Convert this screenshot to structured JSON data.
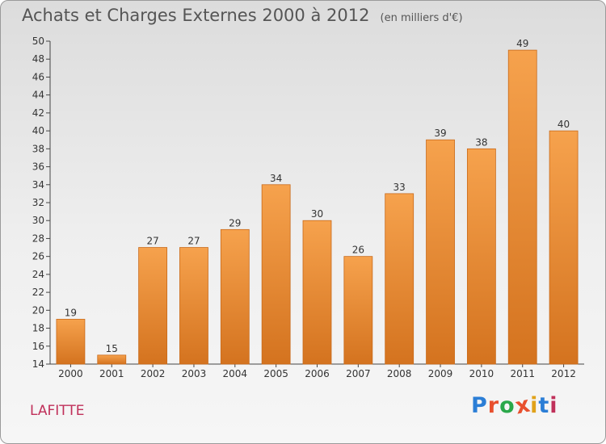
{
  "header": {
    "title": "Achats et Charges Externes 2000 à 2012",
    "unit": "(en milliers d'€)"
  },
  "footer": {
    "commune": "LAFITTE",
    "brand": "Proxiti",
    "brand_colors": [
      "#2b7ed6",
      "#e8502e",
      "#2aa84a",
      "#e8502e",
      "#e0a21a",
      "#2b7ed6",
      "#c0305a"
    ]
  },
  "colors": {
    "bar_top": "#f6a24d",
    "bar_bottom": "#d4731f",
    "bar_stroke": "#c96a1a"
  },
  "chart_data": {
    "type": "bar",
    "title": "Achats et Charges Externes 2000 à 2012",
    "subtitle": "(en milliers d'€)",
    "categories": [
      "2000",
      "2001",
      "2002",
      "2003",
      "2004",
      "2005",
      "2006",
      "2007",
      "2008",
      "2009",
      "2010",
      "2011",
      "2012"
    ],
    "values": [
      19,
      15,
      27,
      27,
      29,
      34,
      30,
      26,
      33,
      39,
      38,
      49,
      40
    ],
    "ylim": [
      14,
      50
    ],
    "yticks": [
      14,
      16,
      18,
      20,
      22,
      24,
      26,
      28,
      30,
      32,
      34,
      36,
      38,
      40,
      42,
      44,
      46,
      48,
      50
    ],
    "grid": false,
    "data_labels": true
  }
}
